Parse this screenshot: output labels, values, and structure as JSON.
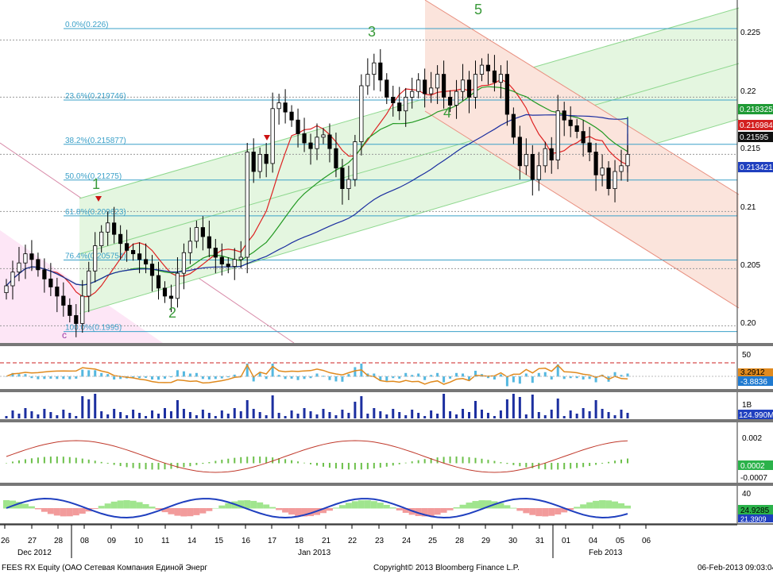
{
  "colors": {
    "up": "#ffffff",
    "down": "#000000",
    "sma_red": "#dd2222",
    "sma_green": "#229922",
    "sma_blue": "#1c2fa0",
    "fib": "#3aa0c8",
    "channel_green": "#8fd88f",
    "channel_red": "#e89080",
    "histogram": "#55b8e0",
    "rsi_line": "#e08a1e",
    "volume": "#1c2fa0",
    "badge_green": "#1f9a35",
    "badge_red": "#d32020",
    "badge_black": "#111111",
    "badge_blue": "#1f3fbf"
  },
  "footer": {
    "ticker": "FEES RX Equity (ОАО Сетевая Компания Единой Энерг",
    "copyright": "Copyright© 2013 Bloomberg Finance L.P.",
    "timestamp": "06-Feb-2013 09:03:04"
  },
  "chart_data": [
    {
      "type": "candlestick",
      "x_tick_labels": [
        "26",
        "27",
        "28",
        "08",
        "09",
        "10",
        "11",
        "14",
        "15",
        "16",
        "17",
        "18",
        "21",
        "22",
        "23",
        "24",
        "25",
        "28",
        "29",
        "30",
        "31",
        "01",
        "04",
        "05",
        "06"
      ],
      "x_period_labels": [
        "Dec 2012",
        "Jan 2013",
        "Feb 2013"
      ],
      "y_tick_labels": [
        "0.225",
        "0.22",
        "0.215",
        "0.21",
        "0.205",
        "0.20"
      ],
      "ylim": [
        0.1985,
        0.2285
      ],
      "closes": [
        0.2035,
        0.2047,
        0.2055,
        0.2063,
        0.2058,
        0.2049,
        0.2041,
        0.2034,
        0.2026,
        0.2018,
        0.2009,
        0.2002,
        0.2026,
        0.2048,
        0.207,
        0.2082,
        0.209,
        0.208,
        0.2072,
        0.2066,
        0.2063,
        0.2058,
        0.2054,
        0.2044,
        0.2033,
        0.2026,
        0.2024,
        0.2046,
        0.2064,
        0.2074,
        0.2086,
        0.2078,
        0.2068,
        0.206,
        0.2054,
        0.2052,
        0.2058,
        0.206,
        0.2152,
        0.2135,
        0.215,
        0.2142,
        0.219,
        0.2195,
        0.2187,
        0.218,
        0.2168,
        0.216,
        0.2155,
        0.2165,
        0.2167,
        0.2155,
        0.2138,
        0.212,
        0.2128,
        0.2161,
        0.221,
        0.222,
        0.223,
        0.2215,
        0.22,
        0.2195,
        0.2188,
        0.22,
        0.2205,
        0.2215,
        0.2203,
        0.2208,
        0.222,
        0.22,
        0.2193,
        0.2205,
        0.2215,
        0.22,
        0.222,
        0.2228,
        0.2223,
        0.2213,
        0.222,
        0.2185,
        0.2165,
        0.214,
        0.215,
        0.2128,
        0.214,
        0.2155,
        0.2145,
        0.2188,
        0.218,
        0.2175,
        0.217,
        0.216,
        0.2152,
        0.2132,
        0.2138,
        0.212,
        0.2135,
        0.214,
        0.215
      ],
      "last_close": 0.21595,
      "series": [
        {
          "name": "SMA",
          "color": "sma_red",
          "last": 0.216984
        },
        {
          "name": "SMA",
          "color": "sma_green",
          "last": 0.218325
        },
        {
          "name": "SMA",
          "color": "sma_blue",
          "last": 0.213421
        }
      ],
      "fibonacci": [
        {
          "label": "0.0%(0.226)",
          "value": 0.226
        },
        {
          "label": "23.6%(0.219746)",
          "value": 0.219746
        },
        {
          "label": "38.2%(0.215877)",
          "value": 0.215877
        },
        {
          "label": "50.0%(0.21275)",
          "value": 0.21275
        },
        {
          "label": "61.8%(0.209623)",
          "value": 0.209623
        },
        {
          "label": "76.4%(0.205754)",
          "value": 0.205754
        },
        {
          "label": "100.0%(0.1995)",
          "value": 0.1995
        }
      ],
      "wave_labels": [
        "1",
        "2",
        "3",
        "4",
        "5",
        "c"
      ]
    },
    {
      "type": "bar",
      "name": "oscillator",
      "y_tick_labels": [
        "50"
      ],
      "badges": [
        "3.2912",
        "-3.8836"
      ]
    },
    {
      "type": "bar",
      "name": "volume",
      "y_tick_labels": [
        "1B"
      ],
      "badges": [
        "124.990M"
      ]
    },
    {
      "type": "bar",
      "name": "macd",
      "y_tick_labels": [
        "0.002"
      ],
      "badges": [
        "0.0002",
        "-0.0007"
      ]
    },
    {
      "type": "area",
      "name": "dmi",
      "y_tick_labels": [
        "40"
      ],
      "badges": [
        "24.9285",
        "21.3909"
      ]
    }
  ]
}
